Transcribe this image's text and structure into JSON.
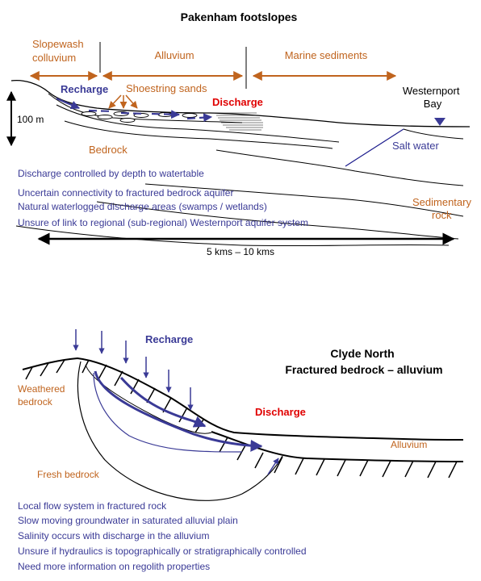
{
  "top": {
    "title": "Pakenham footslopes",
    "zones": [
      "Slopewash\ncolluvium",
      "Alluvium",
      "Marine sediments"
    ],
    "labels": {
      "recharge": "Recharge",
      "shoestring": "Shoestring sands",
      "discharge": "Discharge",
      "westernport": "Westernport\nBay",
      "height": "100 m",
      "bedrock": "Bedrock",
      "salt_water": "Salt water",
      "sedimentary": "Sedimentary\nrock",
      "distance": "5 kms – 10 kms"
    },
    "notes": [
      "Discharge controlled by depth to watertable",
      "Uncertain connectivity to fractured bedrock aquifer",
      "Natural waterlogged discharge areas (swamps / wetlands)",
      "Unsure of link to regional (sub-regional) Westernport aquifer system"
    ]
  },
  "bottom": {
    "title": "Clyde North\nFractured bedrock – alluvium",
    "labels": {
      "recharge": "Recharge",
      "weathered": "Weathered\nbedrock",
      "discharge": "Discharge",
      "alluvium": "Alluvium",
      "fresh": "Fresh bedrock"
    },
    "notes": [
      "Local flow system in fractured rock",
      "Slow moving groundwater in saturated alluvial plain",
      "Salinity occurs with discharge in the alluvium",
      "Unsure if hydraulics is topographically or stratigraphically controlled",
      "Need more information on regolith properties"
    ]
  },
  "colors": {
    "orange": "#c0641e",
    "blue": "#3a3a96",
    "red": "#e00000",
    "black": "#000000"
  }
}
